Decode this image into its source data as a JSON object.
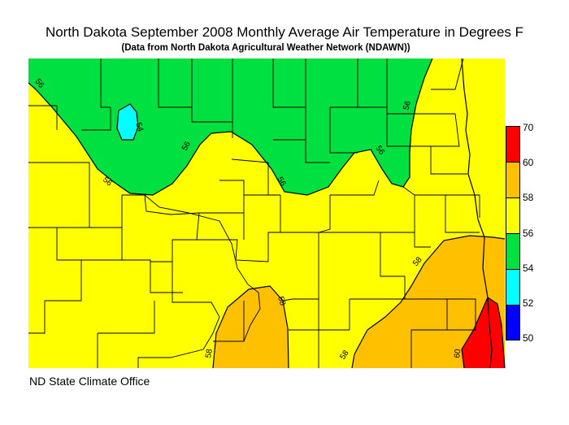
{
  "title": "North Dakota September 2008 Monthly Average Air Temperature in Degrees F",
  "subtitle": "(Data from North Dakota Agricultural Weather Network (NDAWN))",
  "footer": "ND State Climate Office",
  "legend": {
    "breaks": [
      "70",
      "60",
      "58",
      "56",
      "54",
      "52",
      "50"
    ],
    "bands": [
      {
        "range": "60-70",
        "color": "#ff0000"
      },
      {
        "range": "58-60",
        "color": "#ffc000"
      },
      {
        "range": "56-58",
        "color": "#ffff00"
      },
      {
        "range": "54-56",
        "color": "#00e040"
      },
      {
        "range": "52-54",
        "color": "#00ffff"
      },
      {
        "range": "50-52",
        "color": "#0000ff"
      }
    ]
  },
  "contour_labels": [
    "56",
    "54",
    "56",
    "56",
    "56",
    "56",
    "56",
    "58",
    "58",
    "58",
    "58",
    "60"
  ]
}
